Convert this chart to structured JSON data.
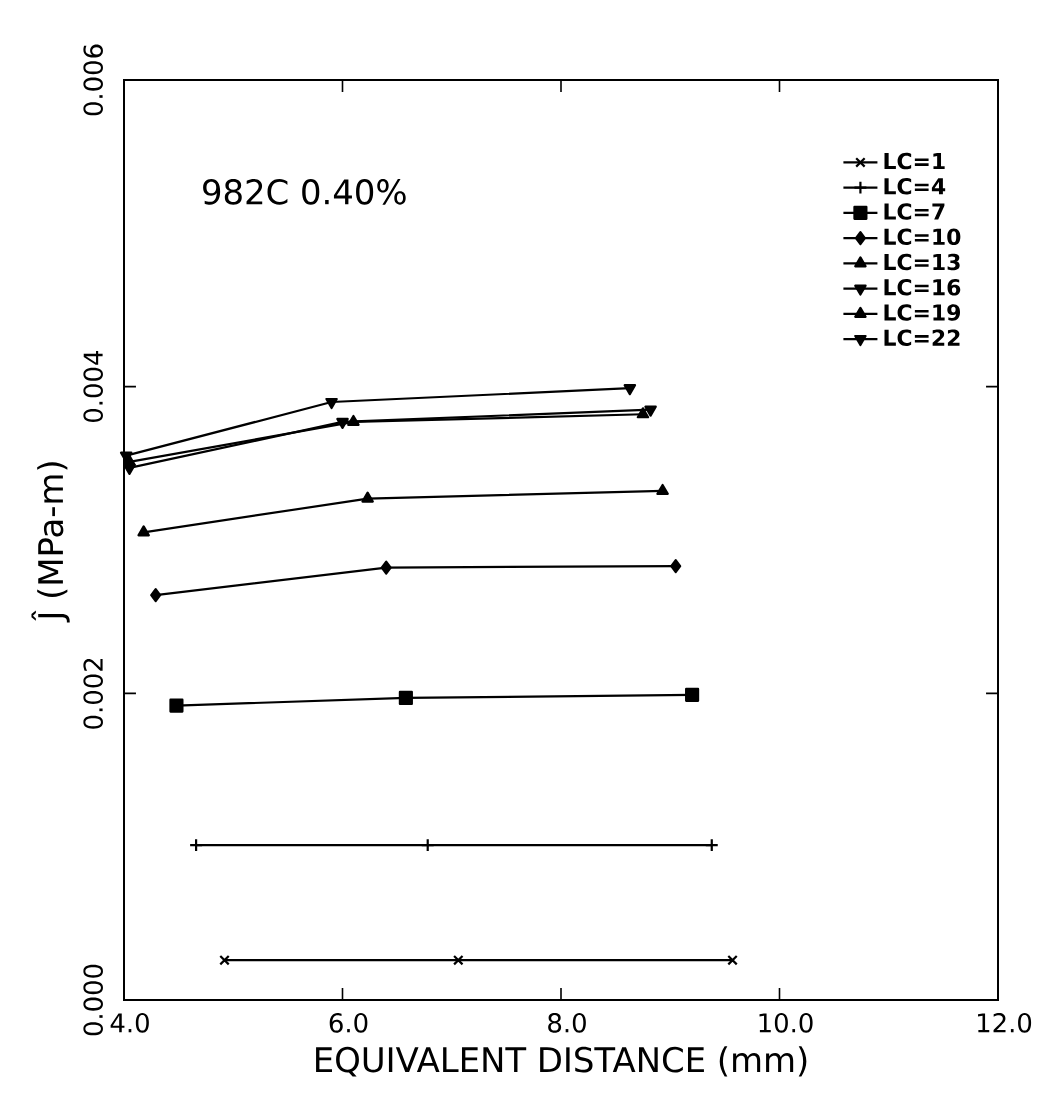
{
  "chart_data": {
    "type": "line",
    "annotations": [
      "982C  0.40%"
    ],
    "xlabel": "EQUIVALENT DISTANCE (mm)",
    "ylabel": "Ĵ (MPa-m)",
    "xlim": [
      4,
      12
    ],
    "ylim": [
      0,
      0.006
    ],
    "xticks": [
      {
        "value": 4,
        "label": "4.0"
      },
      {
        "value": 6,
        "label": "6.0"
      },
      {
        "value": 8,
        "label": "8.0"
      },
      {
        "value": 10,
        "label": "10.0"
      },
      {
        "value": 12,
        "label": "12.0"
      }
    ],
    "yticks": [
      {
        "value": 0,
        "label": "0.000"
      },
      {
        "value": 0.002,
        "label": "0.002"
      },
      {
        "value": 0.004,
        "label": "0.004"
      },
      {
        "value": 0.006,
        "label": "0.006"
      }
    ],
    "legend": "top right",
    "line_style": "solid",
    "series": [
      {
        "name": "LC=1",
        "color": "#000000",
        "marker": "cross",
        "x": [
          4.92,
          7.06,
          9.57
        ],
        "values": [
          0.00026,
          0.00026,
          0.00026
        ]
      },
      {
        "name": "LC=4",
        "color": "#000000",
        "marker": "plus",
        "x": [
          4.66,
          6.78,
          9.38
        ],
        "values": [
          0.00101,
          0.00101,
          0.00101
        ]
      },
      {
        "name": "LC=7",
        "color": "#000000",
        "marker": "square",
        "x": [
          4.48,
          6.58,
          9.2
        ],
        "values": [
          0.00192,
          0.00197,
          0.00199
        ]
      },
      {
        "name": "LC=10",
        "color": "#000000",
        "marker": "diamond",
        "x": [
          4.29,
          6.4,
          9.05
        ],
        "values": [
          0.00264,
          0.00282,
          0.00283
        ]
      },
      {
        "name": "LC=13",
        "color": "#000000",
        "marker": "triangle",
        "x": [
          4.18,
          6.23,
          8.93
        ],
        "values": [
          0.00305,
          0.00327,
          0.00332
        ]
      },
      {
        "name": "LC=16",
        "color": "#000000",
        "marker": "triangle-down",
        "x": [
          4.02,
          5.9,
          8.63
        ],
        "values": [
          0.00355,
          0.0039,
          0.00399
        ]
      },
      {
        "name": "LC=19",
        "color": "#000000",
        "marker": "triangle",
        "x": [
          4.05,
          6.1,
          8.75
        ],
        "values": [
          0.00351,
          0.00377,
          0.00382
        ]
      },
      {
        "name": "LC=22",
        "color": "#000000",
        "marker": "triangle-down",
        "x": [
          4.05,
          6.0,
          8.82
        ],
        "values": [
          0.00347,
          0.00377,
          0.00385
        ]
      }
    ]
  }
}
